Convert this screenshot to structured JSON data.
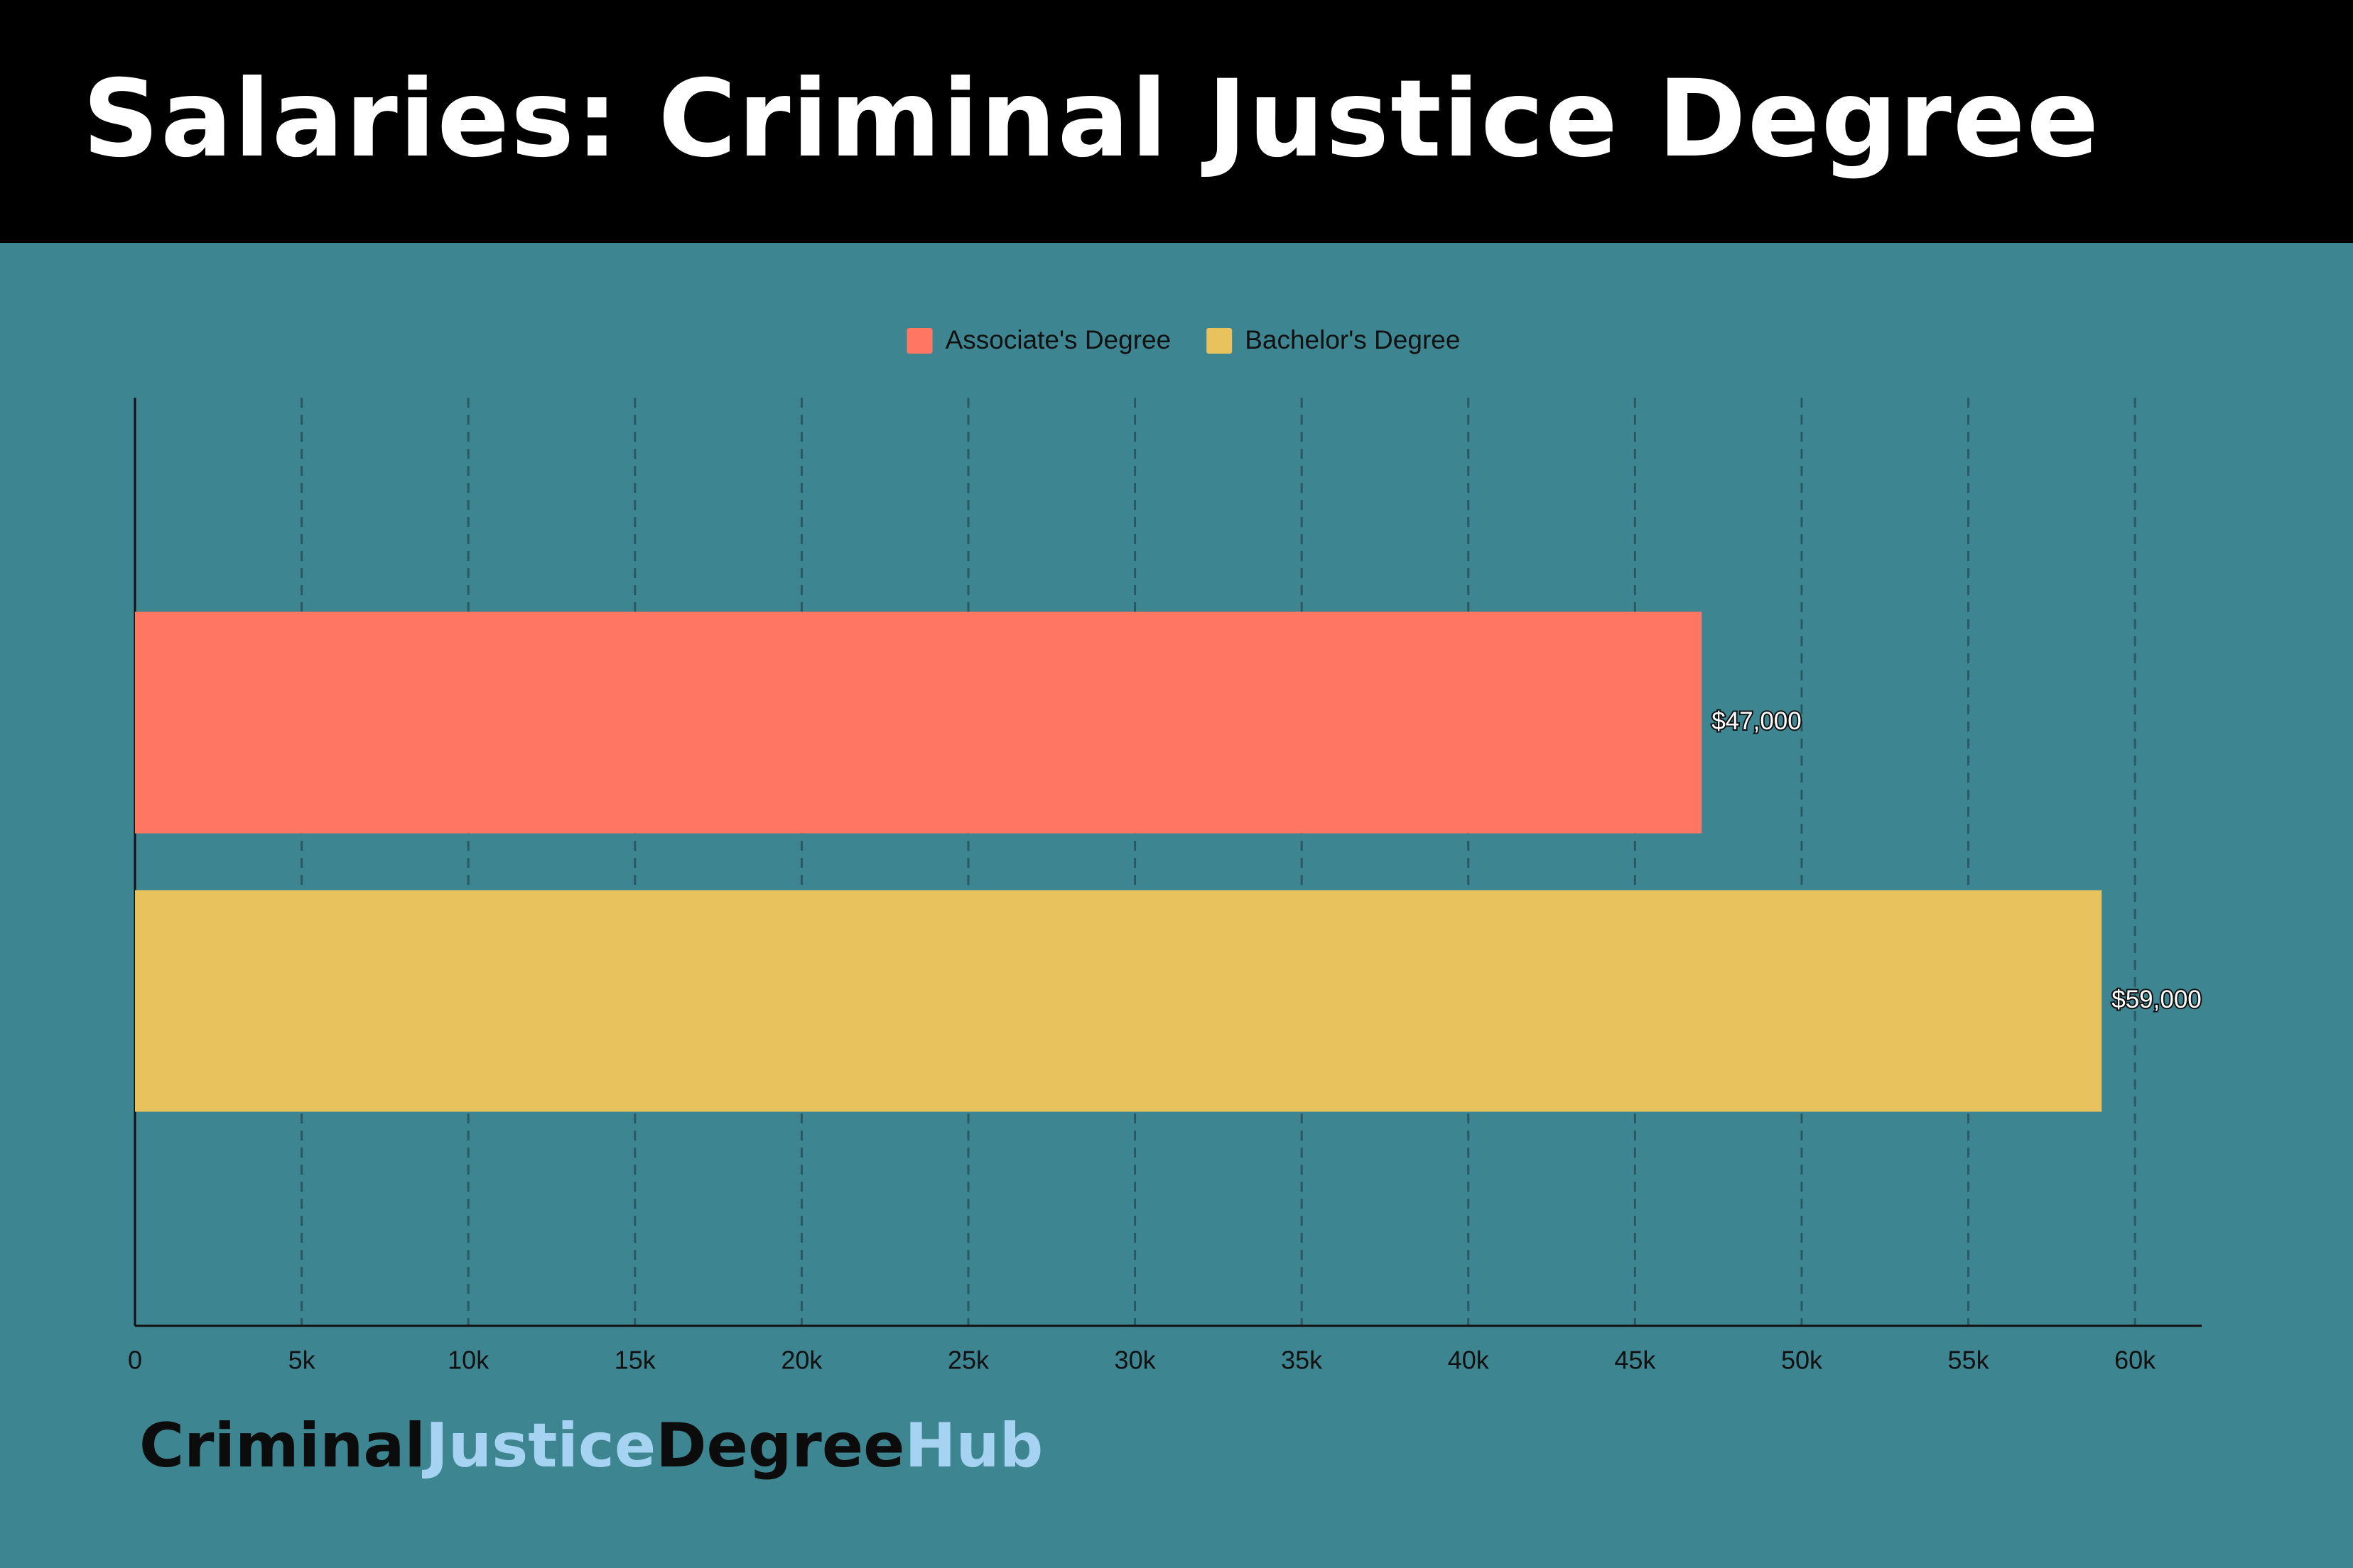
{
  "chart_data": {
    "type": "bar",
    "orientation": "horizontal",
    "title": "Salaries: Criminal Justice Degree",
    "categories": [
      null
    ],
    "series": [
      {
        "name": "Associate's Degree",
        "color": "#ff7662",
        "values": [
          47000
        ],
        "value_labels": [
          "$47,000"
        ]
      },
      {
        "name": "Bachelor's Degree",
        "color": "#e8c25c",
        "values": [
          59000
        ],
        "value_labels": [
          "$59,000"
        ]
      }
    ],
    "xlim": [
      0,
      62000
    ],
    "xticks": [
      0,
      {
        "value": 5000,
        "label": "5k"
      },
      {
        "value": 10000,
        "label": "10k"
      },
      {
        "value": 15000,
        "label": "15k"
      },
      {
        "value": 20000,
        "label": "20k"
      },
      {
        "value": 25000,
        "label": "25k"
      },
      {
        "value": 30000,
        "label": "30k"
      },
      {
        "value": 35000,
        "label": "35k"
      },
      {
        "value": 40000,
        "label": "40k"
      },
      {
        "value": 45000,
        "label": "45k"
      },
      {
        "value": 50000,
        "label": "50k"
      },
      {
        "value": 55000,
        "label": "55k"
      },
      {
        "value": 60000,
        "label": "60k"
      }
    ],
    "grid": true,
    "legend": "top"
  },
  "footer": {
    "brand": [
      "Criminal",
      "Justice",
      "Degree",
      "Hub"
    ]
  }
}
